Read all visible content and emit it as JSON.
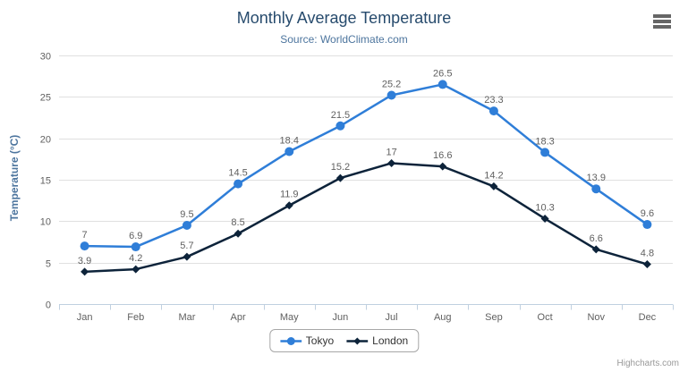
{
  "chart": {
    "title": "Monthly Average Temperature",
    "subtitle": "Source: WorldClimate.com",
    "credits": "Highcharts.com"
  },
  "icons": {
    "context_menu": "hamburger"
  },
  "colors": {
    "title": "#274b6d",
    "subtitle": "#4d759e",
    "axis_label": "#606060",
    "axis_line": "#c0d0e0",
    "gridline": "#e0e0e0",
    "data_label": "#606060",
    "legend_text": "#333333",
    "credits": "#999999"
  },
  "chart_data": {
    "type": "line",
    "title": "Monthly Average Temperature",
    "subtitle": "Source: WorldClimate.com",
    "categories": [
      "Jan",
      "Feb",
      "Mar",
      "Apr",
      "May",
      "Jun",
      "Jul",
      "Aug",
      "Sep",
      "Oct",
      "Nov",
      "Dec"
    ],
    "series": [
      {
        "name": "Tokyo",
        "color": "#2f7ed8",
        "marker": "circle",
        "values": [
          7,
          6.9,
          9.5,
          14.5,
          18.4,
          21.5,
          25.2,
          26.5,
          23.3,
          18.3,
          13.9,
          9.6
        ]
      },
      {
        "name": "London",
        "color": "#0d233a",
        "marker": "diamond",
        "values": [
          3.9,
          4.2,
          5.7,
          8.5,
          11.9,
          15.2,
          17,
          16.6,
          14.2,
          10.3,
          6.6,
          4.8
        ]
      }
    ],
    "xlabel": "",
    "ylabel": "Temperature (°C)",
    "ylim": [
      0,
      30
    ],
    "ytick_interval": 5,
    "grid": true,
    "legend_position": "bottom",
    "data_labels": true
  }
}
